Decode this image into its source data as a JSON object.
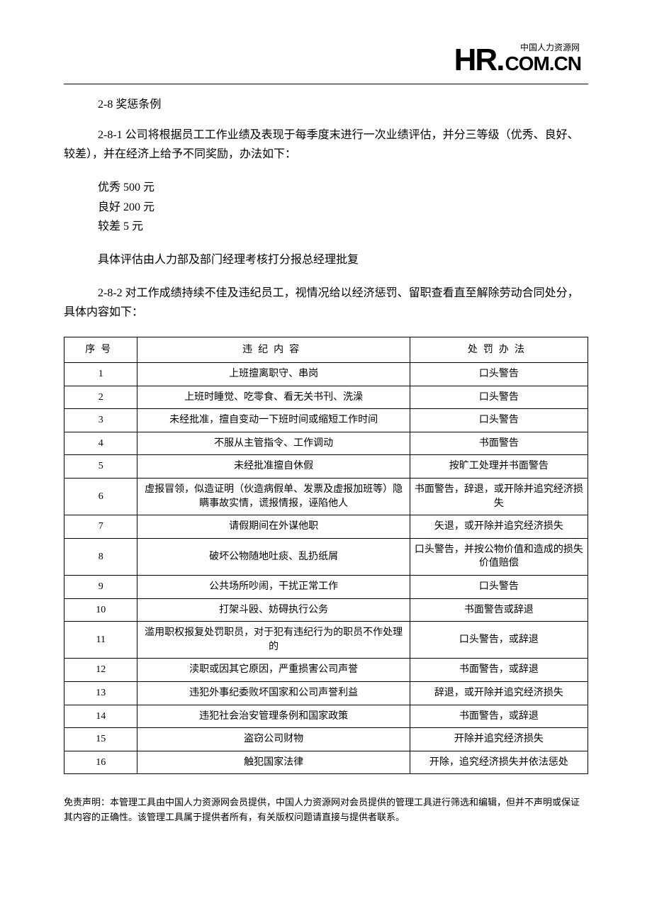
{
  "logo": {
    "hr": "HR",
    "dot": ".",
    "com": "COM.CN",
    "tagline": "中国人力资源网"
  },
  "section_title": "2-8 奖惩条例",
  "para1": "2-8-1 公司将根据员工工作业绩及表现于每季度末进行一次业绩评估，并分三等级（优秀、良好、较差），并在经济上给予不同奖励，办法如下：",
  "rewards": {
    "excellent": "优秀 500 元",
    "good": "良好 200 元",
    "poor": "较差 5 元"
  },
  "para2": "具体评估由人力部及部门经理考核打分报总经理批复",
  "para3": "2-8-2 对工作成绩持续不佳及违纪员工，视情况给以经济惩罚、留职查看直至解除劳动合同处分，具体内容如下：",
  "table": {
    "headers": {
      "num": "序号",
      "content": "违纪内容",
      "penalty": "处罚办法"
    },
    "rows": [
      {
        "num": "1",
        "content": "上班擅离职守、串岗",
        "penalty": "口头警告"
      },
      {
        "num": "2",
        "content": "上班时睡觉、吃零食、看无关书刊、洗澡",
        "penalty": "口头警告"
      },
      {
        "num": "3",
        "content": "未经批准，擅自变动一下班时间或缩短工作时间",
        "penalty": "口头警告"
      },
      {
        "num": "4",
        "content": "不服从主管指令、工作调动",
        "penalty": "书面警告"
      },
      {
        "num": "5",
        "content": "未经批准擅自休假",
        "penalty": "按旷工处理并书面警告"
      },
      {
        "num": "6",
        "content": "虚报冒领，似造证明（伙造病假单、发票及虚报加班等）隐瞒事故实情，谎报情报，诬陷他人",
        "penalty": "书面警告，辞退，或开除并追究经济损失"
      },
      {
        "num": "7",
        "content": "请假期间在外谋他职",
        "penalty": "矢退，或开除并追究经济损失"
      },
      {
        "num": "8",
        "content": "破坏公物随地吐痰、乱扔纸屑",
        "penalty": "口头警告，并按公物价值和造成的损失价值赔偿"
      },
      {
        "num": "9",
        "content": "公共场所吵闹，干扰正常工作",
        "penalty": "口头警告"
      },
      {
        "num": "10",
        "content": "打架斗殴、妨碍执行公务",
        "penalty": "书面警告或辞退"
      },
      {
        "num": "11",
        "content": "滥用职权报复处罚职员，对于犯有违纪行为的职员不作处理的",
        "penalty": "口头警告，或辞退"
      },
      {
        "num": "12",
        "content": "渎职或因其它原因，严重损害公司声誉",
        "penalty": "书面警告，或辞退"
      },
      {
        "num": "13",
        "content": "违犯外事纪委败坏国家和公司声誉利益",
        "penalty": "辞退，或开除并追究经济损失"
      },
      {
        "num": "14",
        "content": "违犯社会治安管理条例和国家政策",
        "penalty": "书面警告，或辞退"
      },
      {
        "num": "15",
        "content": "盗窃公司财物",
        "penalty": "开除并追究经济损失"
      },
      {
        "num": "16",
        "content": "触犯国家法律",
        "penalty": "开除，追究经济损失并依法惩处"
      }
    ]
  },
  "disclaimer": "免责声明：本管理工具由中国人力资源网会员提供，中国人力资源网对会员提供的管理工具进行筛选和编辑，但并不声明或保证其内容的正确性。该管理工具属于提供者所有，有关版权问题请直接与提供者联系。"
}
